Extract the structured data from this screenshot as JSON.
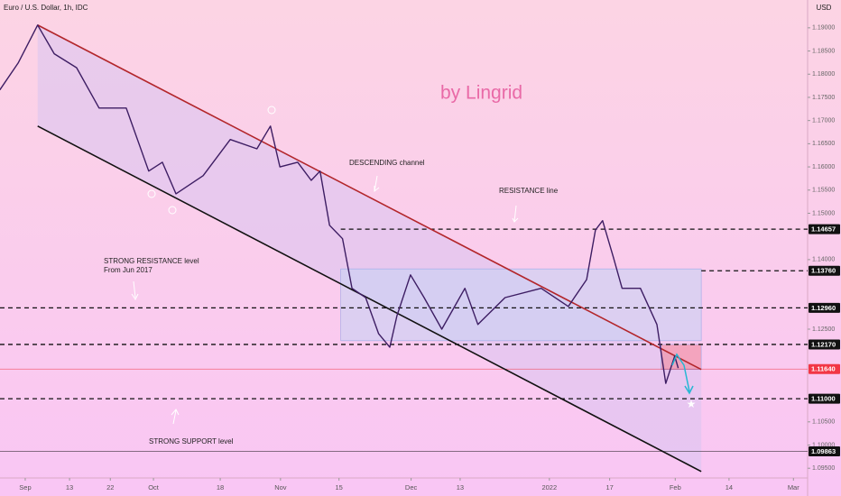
{
  "chart_data": {
    "type": "line",
    "title": "Euro / U.S. Dollar, 1h, IDC",
    "currency": "USD",
    "xlim": [
      -4.27,
      132.4
    ],
    "ylim": [
      1.0929,
      1.196
    ],
    "xticks": [
      {
        "value": 0,
        "label": "Sep"
      },
      {
        "value": 7.5,
        "label": "13"
      },
      {
        "value": 14.4,
        "label": "22"
      },
      {
        "value": 21.7,
        "label": "Oct"
      },
      {
        "value": 33,
        "label": "18"
      },
      {
        "value": 43.2,
        "label": "Nov"
      },
      {
        "value": 53.1,
        "label": "15"
      },
      {
        "value": 65.3,
        "label": "Dec"
      },
      {
        "value": 73.6,
        "label": "13"
      },
      {
        "value": 88.7,
        "label": "2022"
      },
      {
        "value": 98.9,
        "label": "17"
      },
      {
        "value": 110,
        "label": "Feb"
      },
      {
        "value": 119.1,
        "label": "14"
      },
      {
        "value": 130,
        "label": "Mar"
      }
    ],
    "yticks": [
      {
        "value": 1.19,
        "label": "1.19000"
      },
      {
        "value": 1.185,
        "label": "1.18500"
      },
      {
        "value": 1.18,
        "label": "1.18000"
      },
      {
        "value": 1.175,
        "label": "1.17500"
      },
      {
        "value": 1.17,
        "label": "1.17000"
      },
      {
        "value": 1.165,
        "label": "1.16500"
      },
      {
        "value": 1.16,
        "label": "1.16000"
      },
      {
        "value": 1.155,
        "label": "1.15500"
      },
      {
        "value": 1.15,
        "label": "1.15000"
      },
      {
        "value": 1.14,
        "label": "1.14000"
      },
      {
        "value": 1.125,
        "label": "1.12500"
      },
      {
        "value": 1.105,
        "label": "1.10500"
      },
      {
        "value": 1.1,
        "label": "1.10000"
      },
      {
        "value": 1.095,
        "label": "1.09500"
      }
    ],
    "price": {
      "color": "#3d1d63",
      "x": [
        -4.3,
        -1.2,
        2.1,
        4.9,
        8.7,
        12.5,
        17.1,
        20.9,
        23.2,
        25.5,
        30.1,
        34.7,
        39.2,
        41.5,
        43.1,
        46.1,
        48.4,
        49.9,
        51.5,
        53.7,
        55.3,
        57.6,
        59.8,
        61.7,
        62.9,
        65.2,
        67.5,
        70.5,
        74.4,
        76.6,
        81.2,
        87.3,
        91.9,
        95.0,
        96.5,
        97.7,
        99.5,
        101.0,
        104.1,
        106.9,
        108.4,
        109.9,
        110.5
      ],
      "y": [
        1.1766,
        1.1824,
        1.1906,
        1.1844,
        1.1814,
        1.1727,
        1.1727,
        1.1591,
        1.161,
        1.1542,
        1.1581,
        1.1659,
        1.1639,
        1.1688,
        1.16,
        1.161,
        1.1571,
        1.1591,
        1.1474,
        1.1445,
        1.1338,
        1.1318,
        1.124,
        1.1211,
        1.1279,
        1.1367,
        1.1318,
        1.125,
        1.1338,
        1.126,
        1.1318,
        1.1338,
        1.1299,
        1.1357,
        1.1464,
        1.1484,
        1.1406,
        1.1338,
        1.1338,
        1.126,
        1.1133,
        1.1192,
        1.1166
      ]
    },
    "trendlines": [
      {
        "color": "#b3262b",
        "x": [
          2.1,
          114.4
        ],
        "y": [
          1.1906,
          1.1163
        ]
      },
      {
        "color": "#111111",
        "x": [
          2.1,
          114.4
        ],
        "y": [
          1.1688,
          1.0943
        ]
      }
    ],
    "boxes": [
      {
        "color": "#c8d2f4",
        "x": [
          53.4,
          114.4
        ],
        "y": [
          1.1225,
          1.138
        ]
      },
      {
        "color": "#f08a9c",
        "x": [
          107.6,
          114.4
        ],
        "y": [
          1.1163,
          1.1217
        ]
      }
    ],
    "levels": [
      {
        "value": 1.14657,
        "label": "1.14657",
        "from": 53.4,
        "style": "dashed",
        "color": "#111111"
      },
      {
        "value": 1.1376,
        "label": "1.13760",
        "from": 114.4,
        "style": "dashed",
        "color": "#111111"
      },
      {
        "value": 1.1296,
        "label": "1.12960",
        "style": "dashed",
        "color": "#111111"
      },
      {
        "value": 1.1217,
        "label": "1.12170",
        "style": "dashed",
        "color": "#111111"
      },
      {
        "value": 1.1164,
        "label": "1.11640",
        "style": "solid",
        "color": "#f23645"
      },
      {
        "value": 1.11,
        "label": "1.11000",
        "style": "dashed",
        "color": "#111111"
      },
      {
        "value": 1.09863,
        "label": "1.09863",
        "style": "solid",
        "color": "#111111"
      }
    ],
    "annotations": [
      "by Lingrid",
      "DESCENDING channel",
      "RESISTANCE line",
      "STRONG RESISTANCE level",
      "From Jun 2017",
      "STRONG SUPPORT level"
    ]
  }
}
